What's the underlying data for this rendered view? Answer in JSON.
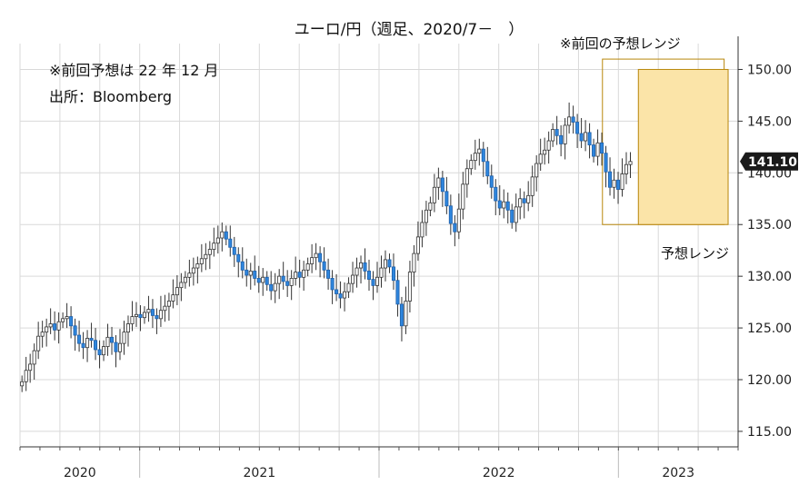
{
  "chart_data": {
    "type": "candlestick",
    "title": "ユーロ/円（週足、2020/7－　）",
    "annotations": {
      "previous_forecast_date": "※前回予想は 22 年 12 月",
      "source": "出所：Bloomberg",
      "previous_range_label": "※前回の予想レンジ",
      "forecast_range_label": "予想レンジ"
    },
    "current_price_label": "141.10",
    "current_price": 141.1,
    "y_axis": {
      "ticks": [
        "115.00",
        "120.00",
        "125.00",
        "130.00",
        "135.00",
        "140.00",
        "145.00",
        "150.00"
      ],
      "ylim": [
        113.5,
        152.5
      ],
      "position": "right"
    },
    "x_axis": {
      "years": [
        "2020",
        "2021",
        "2022",
        "2023"
      ],
      "start": "2020-07",
      "end": "2023-06"
    },
    "grid": true,
    "previous_forecast_range": {
      "low": 135.0,
      "high": 151.0
    },
    "forecast_range": {
      "low": 135.0,
      "high": 150.0
    },
    "colors": {
      "up_candle": "#ffffff",
      "down_candle": "#2e86de",
      "candle_outline": "#333333",
      "forecast_fill": "#fbe4a8",
      "range_border": "#b8860b",
      "grid": "#d9d9d9",
      "price_tag_bg": "#1a1a1a",
      "price_tag_text": "#ffffff"
    },
    "series": [
      {
        "closes": [
          119.8,
          120.9,
          121.5,
          122.8,
          124.2,
          124.6,
          125.1,
          125.4,
          124.8,
          125.6,
          125.9,
          126.1,
          125.2,
          124.3,
          123.5,
          123.1,
          124.0,
          123.8,
          122.9,
          122.4,
          123.2,
          124.1,
          123.6,
          122.7,
          123.5,
          124.6,
          125.4,
          126.1,
          126.3,
          126.0,
          126.5,
          126.8,
          126.2,
          125.9,
          126.7,
          127.1,
          127.6,
          128.2,
          128.9,
          129.4,
          129.9,
          130.3,
          130.8,
          131.2,
          131.7,
          132.1,
          132.6,
          133.2,
          133.7,
          134.3,
          133.6,
          132.8,
          132.1,
          131.4,
          130.6,
          130.1,
          130.5,
          129.8,
          129.4,
          129.9,
          129.2,
          128.6,
          129.3,
          130.0,
          129.5,
          129.1,
          129.8,
          130.4,
          129.9,
          130.6,
          131.2,
          131.8,
          132.2,
          131.4,
          130.6,
          129.8,
          128.7,
          128.3,
          127.9,
          128.5,
          129.3,
          130.1,
          130.8,
          131.3,
          130.5,
          129.7,
          129.1,
          129.9,
          130.8,
          131.6,
          130.9,
          129.6,
          127.3,
          125.2,
          127.6,
          130.4,
          132.2,
          133.8,
          135.2,
          136.4,
          137.1,
          138.6,
          139.5,
          138.2,
          136.8,
          135.1,
          134.3,
          136.5,
          138.9,
          140.4,
          141.2,
          141.9,
          142.3,
          141.1,
          139.7,
          138.6,
          137.3,
          136.6,
          137.2,
          136.4,
          135.2,
          136.7,
          137.5,
          137.1,
          137.8,
          139.6,
          140.9,
          141.8,
          142.2,
          143.1,
          144.2,
          143.6,
          142.8,
          144.6,
          145.4,
          144.9,
          143.8,
          143.1,
          143.9,
          142.7,
          141.6,
          142.9,
          141.9,
          140.1,
          138.6,
          139.3,
          138.4,
          139.9,
          140.8,
          141.1
        ]
      }
    ]
  }
}
